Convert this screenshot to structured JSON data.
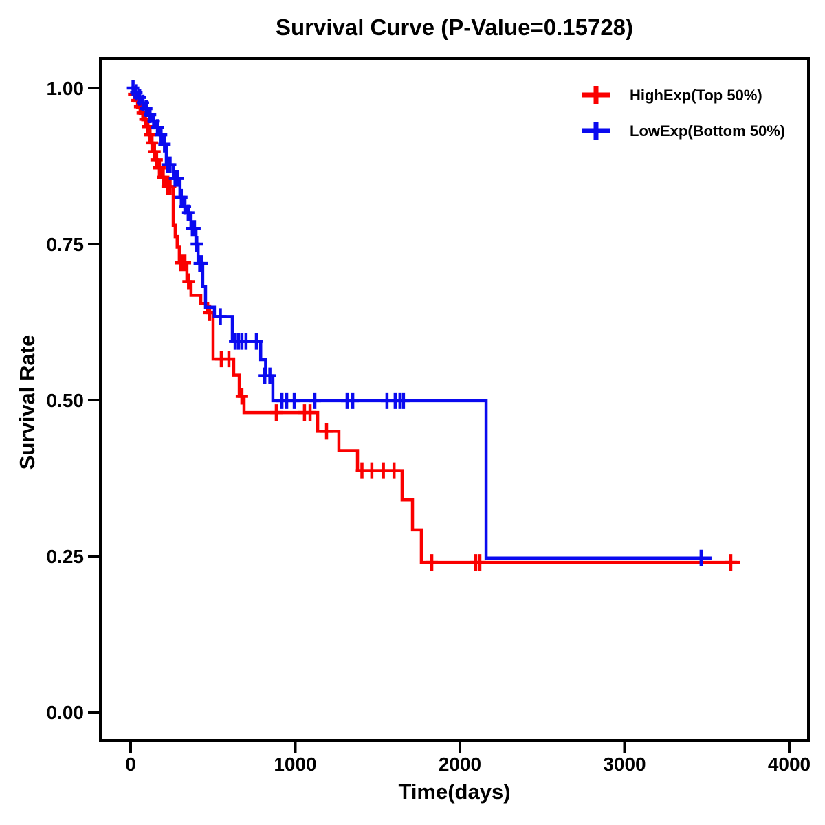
{
  "chart_data": {
    "type": "line",
    "variant": "kaplan_meier_step",
    "title": "Survival Curve (P-Value=0.15728)",
    "p_value": "0.15728",
    "xlabel": "Time(days)",
    "ylabel": "Survival Rate",
    "xlim": [
      -190,
      4120
    ],
    "ylim": [
      -0.05,
      1.05
    ],
    "grid": false,
    "legend_position": "top-right",
    "x_ticks": [
      {
        "value": 0,
        "label": "0"
      },
      {
        "value": 1000,
        "label": "1000"
      },
      {
        "value": 2000,
        "label": "2000"
      },
      {
        "value": 3000,
        "label": "3000"
      },
      {
        "value": 4000,
        "label": "4000"
      }
    ],
    "y_ticks": [
      {
        "value": 1.0,
        "label": "1.00"
      },
      {
        "value": 0.75,
        "label": "0.75"
      },
      {
        "value": 0.5,
        "label": "0.50"
      },
      {
        "value": 0.25,
        "label": "0.25"
      },
      {
        "value": 0.0,
        "label": "0.00"
      }
    ],
    "series": [
      {
        "id": "highexp",
        "name": "HighExp(Top 50%)",
        "color": "#FA0000",
        "steps": [
          [
            0,
            1.0
          ],
          [
            18,
            0.99
          ],
          [
            36,
            0.98
          ],
          [
            52,
            0.97
          ],
          [
            68,
            0.96
          ],
          [
            84,
            0.95
          ],
          [
            100,
            0.938
          ],
          [
            112,
            0.925
          ],
          [
            125,
            0.912
          ],
          [
            138,
            0.898
          ],
          [
            152,
            0.885
          ],
          [
            166,
            0.872
          ],
          [
            190,
            0.857
          ],
          [
            210,
            0.842
          ],
          [
            259,
            0.78
          ],
          [
            271,
            0.762
          ],
          [
            283,
            0.745
          ],
          [
            296,
            0.72
          ],
          [
            342,
            0.69
          ],
          [
            367,
            0.668
          ],
          [
            426,
            0.655
          ],
          [
            468,
            0.64
          ],
          [
            501,
            0.566
          ],
          [
            626,
            0.54
          ],
          [
            660,
            0.506
          ],
          [
            689,
            0.48
          ],
          [
            1136,
            0.45
          ],
          [
            1265,
            0.419
          ],
          [
            1378,
            0.387
          ],
          [
            1649,
            0.34
          ],
          [
            1712,
            0.292
          ],
          [
            1766,
            0.24
          ]
        ],
        "end_time": 3703,
        "censors": [
          [
            22,
            0.99
          ],
          [
            42,
            0.98
          ],
          [
            58,
            0.97
          ],
          [
            74,
            0.96
          ],
          [
            90,
            0.95
          ],
          [
            105,
            0.938
          ],
          [
            118,
            0.925
          ],
          [
            130,
            0.912
          ],
          [
            145,
            0.898
          ],
          [
            158,
            0.885
          ],
          [
            175,
            0.872
          ],
          [
            198,
            0.857
          ],
          [
            225,
            0.842
          ],
          [
            240,
            0.842
          ],
          [
            305,
            0.72
          ],
          [
            318,
            0.72
          ],
          [
            330,
            0.72
          ],
          [
            352,
            0.69
          ],
          [
            480,
            0.64
          ],
          [
            551,
            0.566
          ],
          [
            597,
            0.566
          ],
          [
            676,
            0.506
          ],
          [
            885,
            0.48
          ],
          [
            1056,
            0.48
          ],
          [
            1090,
            0.48
          ],
          [
            1190,
            0.45
          ],
          [
            1405,
            0.387
          ],
          [
            1465,
            0.387
          ],
          [
            1535,
            0.387
          ],
          [
            1600,
            0.387
          ],
          [
            1829,
            0.24
          ],
          [
            2096,
            0.24
          ],
          [
            2121,
            0.24
          ],
          [
            3645,
            0.24
          ]
        ]
      },
      {
        "id": "lowexp",
        "name": "LowExp(Bottom 50%)",
        "color": "#0A0AEF",
        "steps": [
          [
            0,
            1.0
          ],
          [
            25,
            0.993
          ],
          [
            45,
            0.985
          ],
          [
            65,
            0.976
          ],
          [
            88,
            0.967
          ],
          [
            110,
            0.957
          ],
          [
            132,
            0.947
          ],
          [
            155,
            0.937
          ],
          [
            178,
            0.925
          ],
          [
            200,
            0.91
          ],
          [
            217,
            0.877
          ],
          [
            260,
            0.855
          ],
          [
            300,
            0.825
          ],
          [
            322,
            0.81
          ],
          [
            342,
            0.8
          ],
          [
            367,
            0.775
          ],
          [
            397,
            0.75
          ],
          [
            410,
            0.719
          ],
          [
            438,
            0.682
          ],
          [
            455,
            0.649
          ],
          [
            509,
            0.634
          ],
          [
            618,
            0.594
          ],
          [
            790,
            0.565
          ],
          [
            820,
            0.539
          ],
          [
            864,
            0.499
          ],
          [
            2159,
            0.247
          ]
        ],
        "end_time": 3528,
        "censors": [
          [
            15,
            1.0
          ],
          [
            35,
            0.993
          ],
          [
            55,
            0.985
          ],
          [
            75,
            0.976
          ],
          [
            95,
            0.967
          ],
          [
            118,
            0.957
          ],
          [
            140,
            0.947
          ],
          [
            163,
            0.937
          ],
          [
            185,
            0.925
          ],
          [
            206,
            0.91
          ],
          [
            225,
            0.877
          ],
          [
            240,
            0.877
          ],
          [
            270,
            0.855
          ],
          [
            285,
            0.855
          ],
          [
            308,
            0.825
          ],
          [
            330,
            0.81
          ],
          [
            350,
            0.8
          ],
          [
            375,
            0.775
          ],
          [
            388,
            0.775
          ],
          [
            402,
            0.75
          ],
          [
            420,
            0.719
          ],
          [
            430,
            0.719
          ],
          [
            545,
            0.634
          ],
          [
            635,
            0.594
          ],
          [
            655,
            0.594
          ],
          [
            676,
            0.594
          ],
          [
            701,
            0.594
          ],
          [
            764,
            0.594
          ],
          [
            815,
            0.539
          ],
          [
            846,
            0.539
          ],
          [
            919,
            0.499
          ],
          [
            948,
            0.499
          ],
          [
            994,
            0.499
          ],
          [
            1119,
            0.499
          ],
          [
            1315,
            0.499
          ],
          [
            1349,
            0.499
          ],
          [
            1557,
            0.499
          ],
          [
            1607,
            0.499
          ],
          [
            1636,
            0.499
          ],
          [
            1657,
            0.499
          ],
          [
            3465,
            0.247
          ]
        ]
      }
    ],
    "colors": {
      "axis": "#000000",
      "background": "#FFFFFF",
      "high_exp": "#FA0000",
      "low_exp": "#0A0AEF"
    }
  }
}
